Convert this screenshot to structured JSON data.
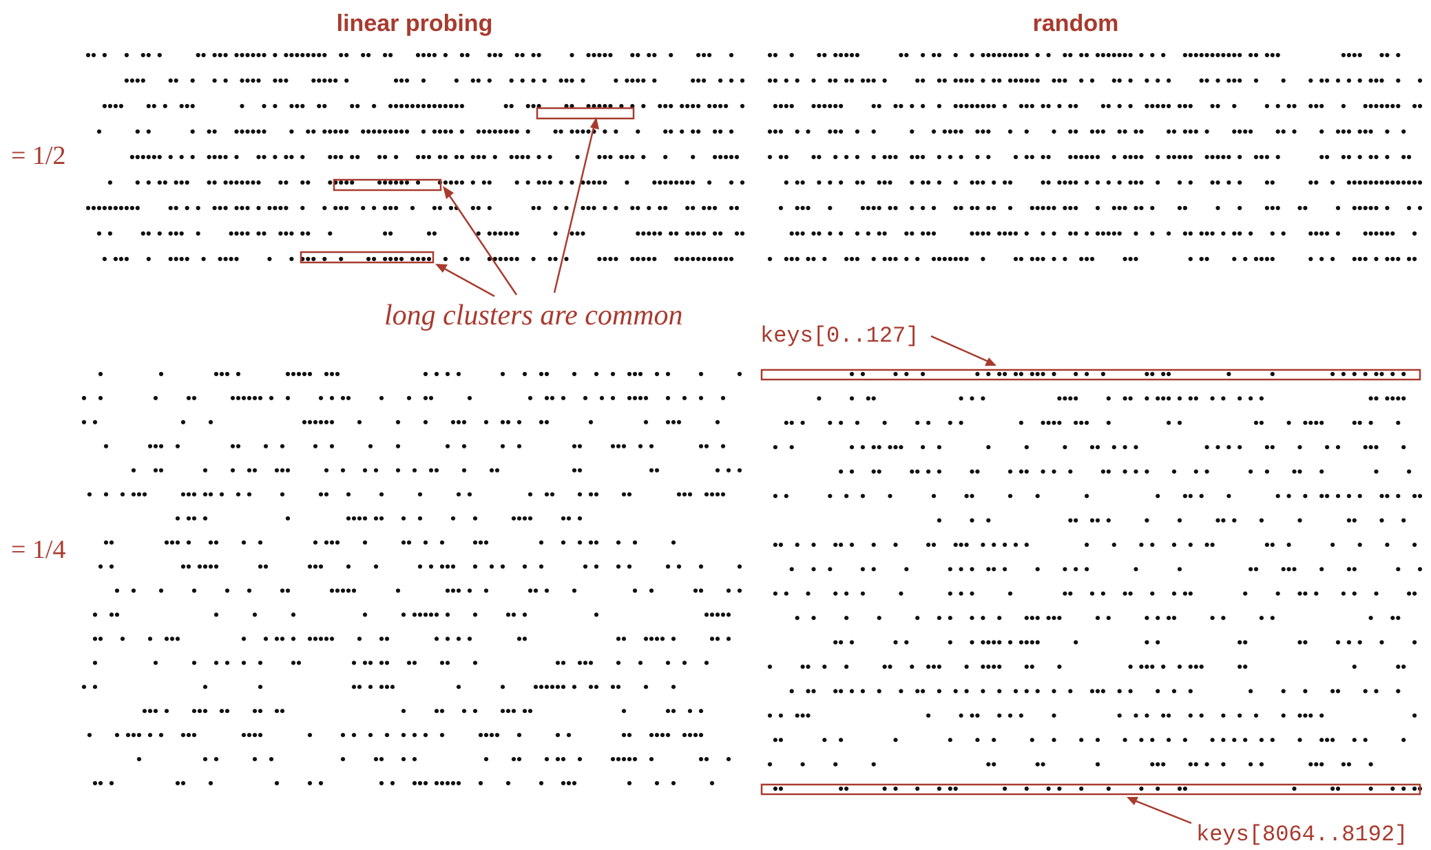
{
  "titles": {
    "left": "linear probing",
    "right": "random"
  },
  "load_factor_labels": {
    "top": "= 1/2",
    "bottom": "= 1/4"
  },
  "annotations": {
    "clusters": "long clusters are common",
    "first_keys": "keys[0..127]",
    "last_keys": "keys[8064..8192]"
  },
  "colors": {
    "accent": "#a83a2e",
    "dots": "#111111"
  },
  "panels": [
    {
      "name": "linear-probing-half",
      "method": "linear probing",
      "load_factor": 0.5,
      "rows": 9,
      "cols": 120
    },
    {
      "name": "random-half",
      "method": "random",
      "load_factor": 0.5,
      "rows": 9,
      "cols": 120
    },
    {
      "name": "linear-probing-quarter",
      "method": "linear probing",
      "load_factor": 0.25,
      "rows": 18,
      "cols": 120
    },
    {
      "name": "random-quarter",
      "method": "random",
      "load_factor": 0.25,
      "rows": 18,
      "cols": 120
    }
  ]
}
